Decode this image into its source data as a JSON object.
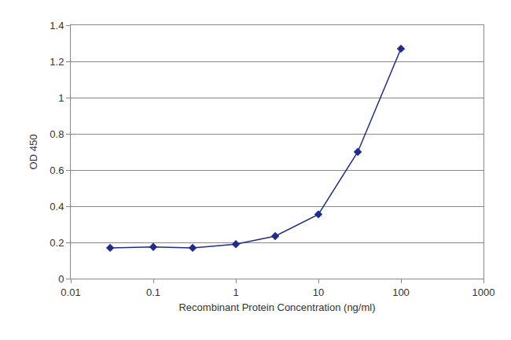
{
  "chart_data": {
    "type": "line",
    "x": [
      0.03,
      0.1,
      0.3,
      1,
      3,
      10,
      30,
      100
    ],
    "values": [
      0.17,
      0.175,
      0.17,
      0.19,
      0.235,
      0.355,
      0.7,
      1.27
    ],
    "color": "#1f2b8f",
    "marker": "diamond",
    "line_style": "solid",
    "x_label": "Recombinant Protein Concentration (ng/ml)",
    "y_label": "OD 450",
    "log": "x",
    "xlim": [
      0.01,
      1000
    ],
    "xticks": [
      0.01,
      0.1,
      1,
      10,
      100,
      1000
    ],
    "ylim": [
      0,
      1.4
    ],
    "yticks": [
      0,
      0.2,
      0.4,
      0.6,
      0.8,
      1,
      1.2,
      1.4
    ],
    "grid": "y"
  }
}
